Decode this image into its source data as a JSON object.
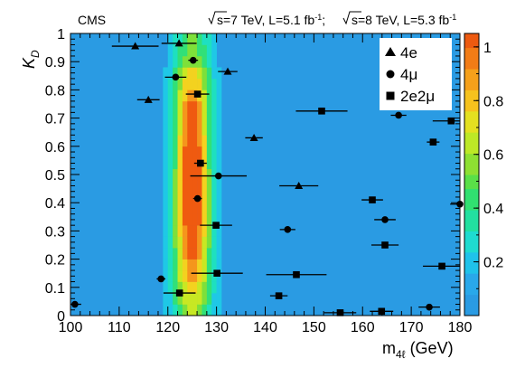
{
  "chart_data": {
    "type": "scatter",
    "experiment_label": "CMS",
    "energy_label": {
      "part1": "s=7 TeV, L=5.1 fb",
      "part1_sup": "-1",
      "part2": "; ",
      "part3": "s=8 TeV, L=5.3 fb",
      "part3_sup": "-1"
    },
    "xlabel": {
      "m": "m",
      "sub": "4ℓ",
      "unit": " (GeV)"
    },
    "ylabel": {
      "k": "K",
      "sub": "D"
    },
    "xlim": [
      100,
      180
    ],
    "ylim": [
      0,
      1
    ],
    "x_ticks": [
      "100",
      "110",
      "120",
      "130",
      "140",
      "150",
      "160",
      "170",
      "180"
    ],
    "y_ticks": [
      "0",
      "0.1",
      "0.2",
      "0.3",
      "0.4",
      "0.5",
      "0.6",
      "0.7",
      "0.8",
      "0.9",
      "1"
    ],
    "colorbar_ticks": [
      "0.2",
      "0.4",
      "0.6",
      "0.8",
      "1"
    ],
    "colorbar_range": [
      0,
      1.05
    ],
    "legend_position": "top-right",
    "series": [
      {
        "name": "4e",
        "marker": "triangle",
        "points": [
          {
            "x": 113.3,
            "y": 0.955,
            "xerr": 4.8
          },
          {
            "x": 122.3,
            "y": 0.965,
            "xerr": 3.6
          },
          {
            "x": 132.3,
            "y": 0.865,
            "xerr": 2.0
          },
          {
            "x": 116.0,
            "y": 0.765,
            "xerr": 2.3
          },
          {
            "x": 137.7,
            "y": 0.63,
            "xerr": 1.8
          },
          {
            "x": 146.9,
            "y": 0.46,
            "xerr": 4.0
          }
        ]
      },
      {
        "name": "4μ",
        "marker": "circle",
        "points": [
          {
            "x": 125.2,
            "y": 0.905,
            "xerr": 1.0
          },
          {
            "x": 121.6,
            "y": 0.845,
            "xerr": 2.2
          },
          {
            "x": 167.4,
            "y": 0.71,
            "xerr": 1.6
          },
          {
            "x": 130.4,
            "y": 0.495,
            "xerr": 5.8
          },
          {
            "x": 126.1,
            "y": 0.415,
            "xerr": 0.9
          },
          {
            "x": 164.6,
            "y": 0.34,
            "xerr": 2.2
          },
          {
            "x": 144.6,
            "y": 0.305,
            "xerr": 1.6
          },
          {
            "x": 180.0,
            "y": 0.395,
            "xerr": 2.0
          },
          {
            "x": 118.6,
            "y": 0.13,
            "xerr": 0.9
          },
          {
            "x": 100.9,
            "y": 0.04,
            "xerr": 1.3
          },
          {
            "x": 173.7,
            "y": 0.03,
            "xerr": 2.2
          }
        ]
      },
      {
        "name": "2e2μ",
        "marker": "square",
        "points": [
          {
            "x": 126.1,
            "y": 0.785,
            "xerr": 2.4
          },
          {
            "x": 151.6,
            "y": 0.725,
            "xerr": 5.3
          },
          {
            "x": 178.2,
            "y": 0.69,
            "xerr": 3.8
          },
          {
            "x": 174.5,
            "y": 0.615,
            "xerr": 1.3
          },
          {
            "x": 126.7,
            "y": 0.54,
            "xerr": 1.3
          },
          {
            "x": 162.0,
            "y": 0.41,
            "xerr": 2.2
          },
          {
            "x": 129.9,
            "y": 0.32,
            "xerr": 3.3
          },
          {
            "x": 164.6,
            "y": 0.25,
            "xerr": 2.8
          },
          {
            "x": 176.3,
            "y": 0.175,
            "xerr": 3.9
          },
          {
            "x": 130.1,
            "y": 0.15,
            "xerr": 5.3
          },
          {
            "x": 146.4,
            "y": 0.145,
            "xerr": 6.2
          },
          {
            "x": 122.4,
            "y": 0.08,
            "xerr": 3.3
          },
          {
            "x": 142.8,
            "y": 0.07,
            "xerr": 1.8
          },
          {
            "x": 155.4,
            "y": 0.01,
            "xerr": 3.3
          },
          {
            "x": 163.9,
            "y": 0.015,
            "xerr": 2.4
          }
        ]
      }
    ],
    "density_peak": {
      "x": 125.0,
      "y": 0.5
    },
    "colors": {
      "background": "#2a9be3",
      "scale": [
        "#29a3e6",
        "#1fc8e6",
        "#1ee0c0",
        "#31e078",
        "#7ee03a",
        "#c8e823",
        "#f3d21f",
        "#f5961c",
        "#ef5a10"
      ]
    }
  }
}
